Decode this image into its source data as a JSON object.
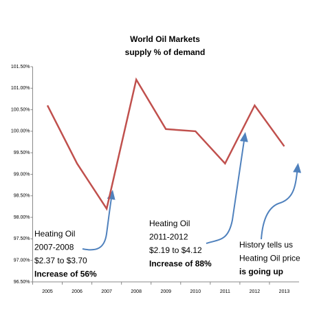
{
  "chart_data": {
    "type": "line",
    "title": "World Oil Markets",
    "subtitle": "supply % of demand",
    "categories": [
      "2005",
      "2006",
      "2007",
      "2008",
      "2009",
      "2010",
      "2011",
      "2012",
      "2013"
    ],
    "series": [
      {
        "name": "supply % of demand",
        "color": "#c0504d",
        "values": [
          100.6,
          99.25,
          98.2,
          101.2,
          100.05,
          100.0,
          99.25,
          100.6,
          99.65
        ]
      }
    ],
    "ylim": [
      96.5,
      101.5
    ],
    "yticks": [
      {
        "value": 96.5,
        "label": "96.50%"
      },
      {
        "value": 97.0,
        "label": "97.00%"
      },
      {
        "value": 97.5,
        "label": "97.50%"
      },
      {
        "value": 98.0,
        "label": "98.00%"
      },
      {
        "value": 98.5,
        "label": "98.50%"
      },
      {
        "value": 99.0,
        "label": "99.00%"
      },
      {
        "value": 99.5,
        "label": "99.50%"
      },
      {
        "value": 100.0,
        "label": "100.00%"
      },
      {
        "value": 100.5,
        "label": "100.50%"
      },
      {
        "value": 101.0,
        "label": "101.00%"
      },
      {
        "value": 101.5,
        "label": "101.50%"
      }
    ],
    "grid": false,
    "annotations": [
      {
        "lines": [
          "Heating Oil",
          "2007-2008",
          "$2.37 to $3.70",
          "Increase of 56%"
        ]
      },
      {
        "lines": [
          "Heating Oil",
          "2011-2012",
          "$2.19 to $4.12",
          "Increase of 88%"
        ]
      },
      {
        "lines": [
          "History tells us",
          "Heating Oil price",
          "is going up"
        ]
      }
    ]
  }
}
